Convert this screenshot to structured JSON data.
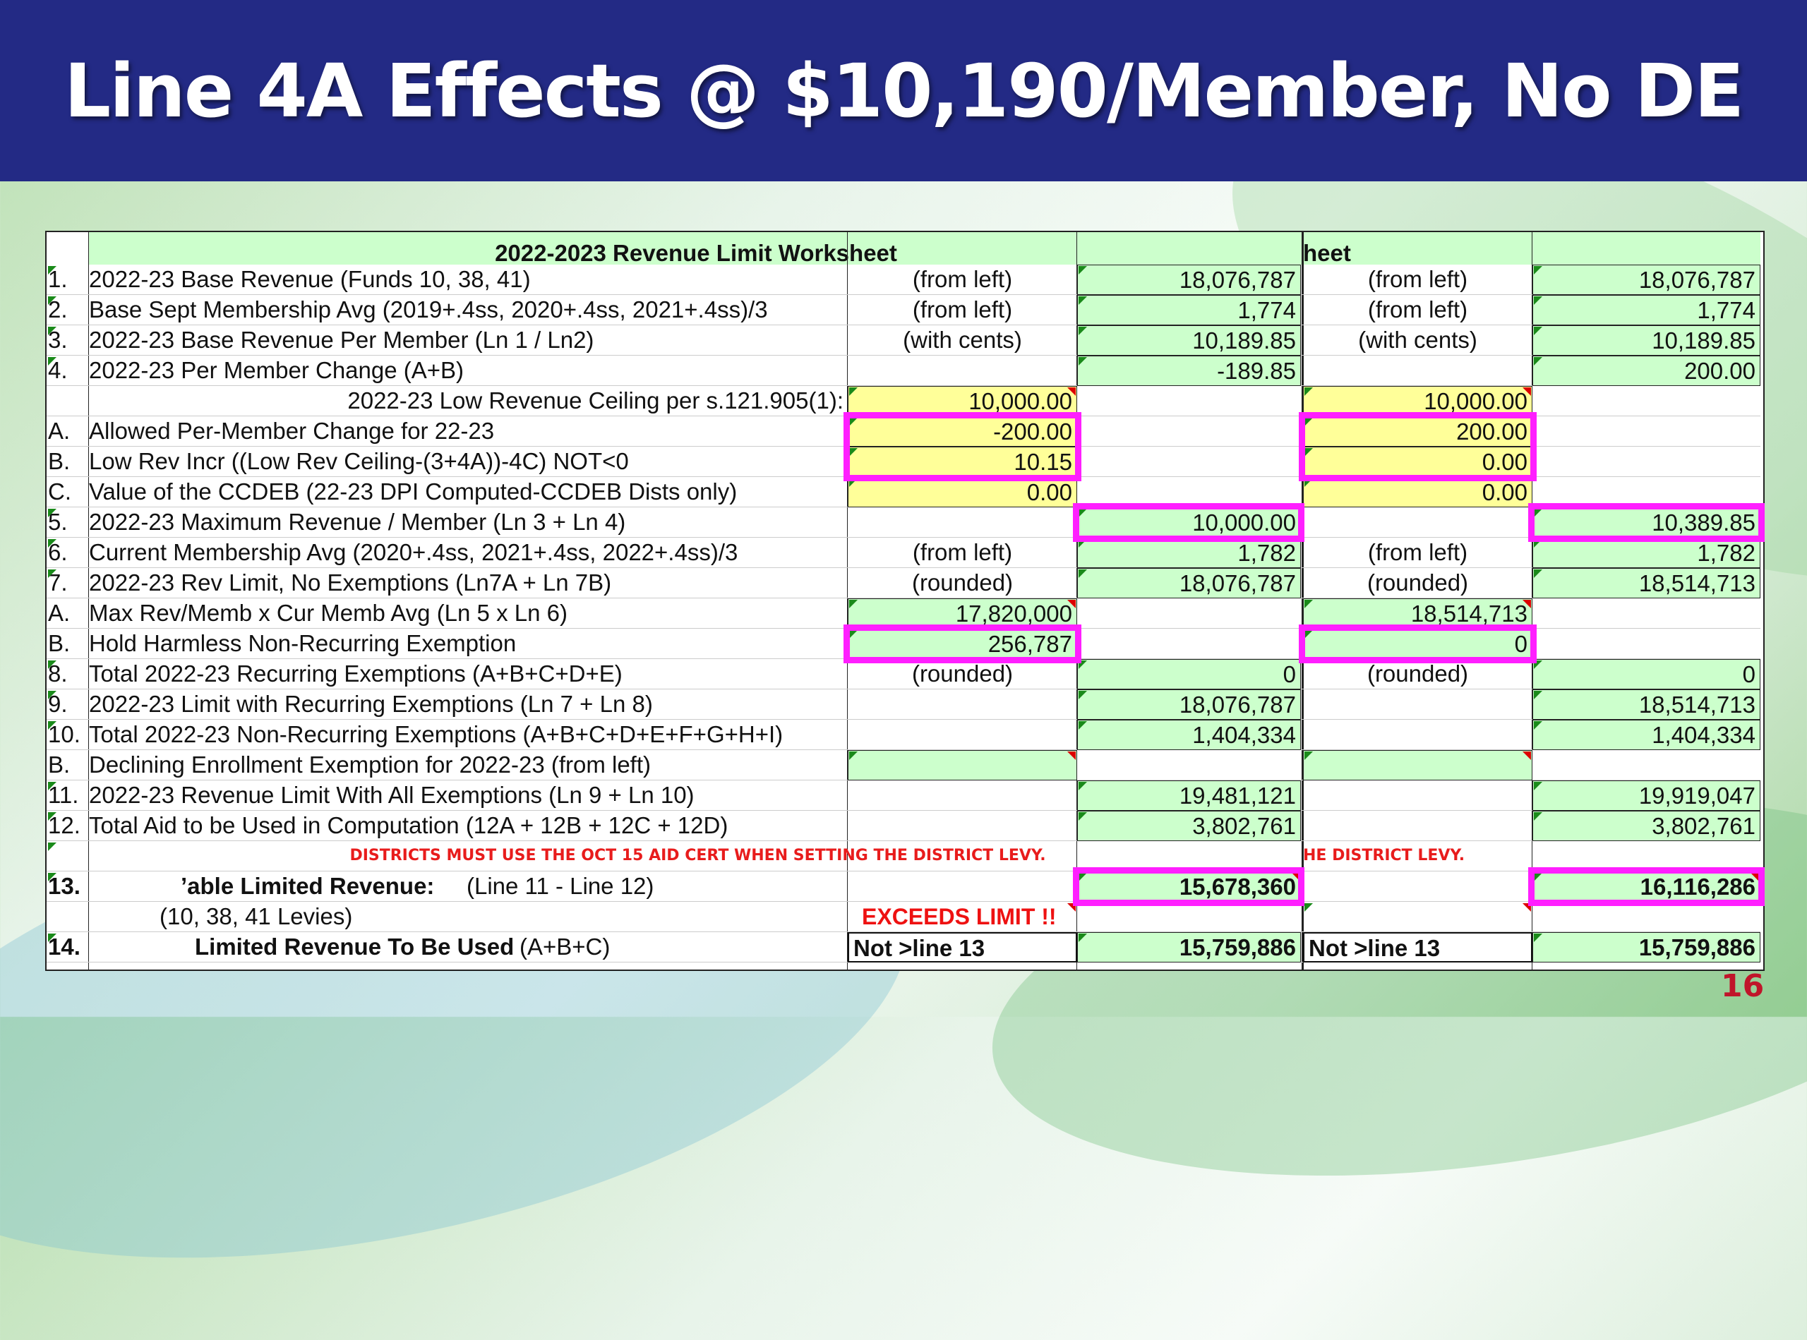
{
  "slide": {
    "title": "Line 4A Effects @ $10,190/Member, No DE",
    "page_number": "16"
  },
  "worksheet": {
    "title_left": "2022-2023 Revenue Limit Worksheet",
    "title_right": "heet",
    "rows": {
      "r1": {
        "num": "1.",
        "desc": "2022-23 Base Revenue (Funds 10, 38, 41)",
        "note1": "(from left)",
        "val1": "18,076,787",
        "note2": "(from left)",
        "val2": "18,076,787"
      },
      "r2": {
        "num": "2.",
        "desc": "Base Sept Membership Avg  (2019+.4ss, 2020+.4ss, 2021+.4ss)/3",
        "note1": "(from left)",
        "val1": "1,774",
        "note2": "(from left)",
        "val2": "1,774"
      },
      "r3": {
        "num": "3.",
        "desc": "2022-23 Base Revenue Per Member (Ln 1 / Ln2)",
        "note1": "(with cents)",
        "val1": "10,189.85",
        "note2": "(with cents)",
        "val2": "10,189.85"
      },
      "r4": {
        "num": "4.",
        "desc": "2022-23 Per Member Change    (A+B)",
        "val1": "-189.85",
        "val2": "200.00"
      },
      "r4c": {
        "desc": "2022-23 Low Revenue Ceiling per s.121.905(1):",
        "in1": "10,000.00",
        "in2": "10,000.00"
      },
      "r4a": {
        "num": "A.",
        "desc": "Allowed Per-Member Change for 22-23",
        "in1": "-200.00",
        "in2": "200.00"
      },
      "r4b": {
        "num": "B.",
        "desc": "Low Rev Incr ((Low Rev Ceiling-(3+4A))-4C) NOT<0",
        "in1": "10.15",
        "in2": "0.00"
      },
      "r4cc": {
        "num": "C.",
        "desc": "Value of the CCDEB (22-23 DPI Computed-CCDEB Dists only)",
        "in1": "0.00",
        "in2": "0.00"
      },
      "r5": {
        "num": "5.",
        "desc": "2022-23 Maximum Revenue / Member (Ln 3 + Ln 4)",
        "val1": "10,000.00",
        "val2": "10,389.85"
      },
      "r6": {
        "num": "6.",
        "desc": "Current Membership Avg  (2020+.4ss, 2021+.4ss, 2022+.4ss)/3",
        "note1": "(from left)",
        "val1": "1,782",
        "note2": "(from left)",
        "val2": "1,782"
      },
      "r7": {
        "num": "7.",
        "desc": "2022-23 Rev Limit, No Exemptions (Ln7A + Ln 7B)",
        "note1": "(rounded)",
        "val1": "18,076,787",
        "note2": "(rounded)",
        "val2": "18,514,713"
      },
      "r7a": {
        "num": "A.",
        "desc": "Max Rev/Memb x Cur Memb Avg (Ln 5 x Ln 6)",
        "in1": "17,820,000",
        "in2": "18,514,713"
      },
      "r7b": {
        "num": "B.",
        "desc": "Hold Harmless Non-Recurring Exemption",
        "in1": "256,787",
        "in2": "0"
      },
      "r8": {
        "num": "8.",
        "desc": "Total 2022-23 Recurring Exemptions  (A+B+C+D+E)",
        "note1": "(rounded)",
        "val1": "0",
        "note2": "(rounded)",
        "val2": "0"
      },
      "r9": {
        "num": "9.",
        "desc": "2022-23 Limit with Recurring Exemptions    (Ln 7 + Ln 8)",
        "val1": "18,076,787",
        "val2": "18,514,713"
      },
      "r10": {
        "num": "10.",
        "desc": "Total 2022-23 Non-Recurring Exemptions  (A+B+C+D+E+F+G+H+I)",
        "val1": "1,404,334",
        "val2": "1,404,334"
      },
      "r10b": {
        "num": "B.",
        "desc": "Declining Enrollment Exemption for 2022-23 (from left)"
      },
      "r11": {
        "num": "11.",
        "desc": "2022-23 Revenue Limit With All Exemptions     (Ln 9 + Ln 10)",
        "val1": "19,481,121",
        "val2": "19,919,047"
      },
      "r12": {
        "num": "12.",
        "desc": "Total Aid to be Used in Computation (12A + 12B + 12C + 12D)",
        "val1": "3,802,761",
        "val2": "3,802,761"
      },
      "warn": {
        "left": "DISTRICTS MUST USE THE OCT 15 AID CERT WHEN SETTING THE DISTRICT LEVY.",
        "right": "HE DISTRICT LEVY."
      },
      "r13": {
        "num": "13.",
        "desc_bold": "’able Limited Revenue:",
        "desc": "(Line 11 - Line 12)",
        "val1": "15,678,360",
        "val2": "16,116,286"
      },
      "r13s": {
        "desc": "(10, 38, 41 Levies)",
        "note1": "EXCEEDS LIMIT !!"
      },
      "r14": {
        "num": "14.",
        "desc_bold": "Limited Revenue To Be Used",
        "desc": "(A+B+C)",
        "note1": "Not >line 13",
        "val1": "15,759,886",
        "note2": "Not >line 13",
        "val2": "15,759,886"
      }
    }
  },
  "colors": {
    "banner": "#232a85",
    "cell_green": "#ccffcc",
    "cell_yellow": "#ffff99",
    "highlight": "#ff1fff",
    "warning": "#e81c1c"
  }
}
